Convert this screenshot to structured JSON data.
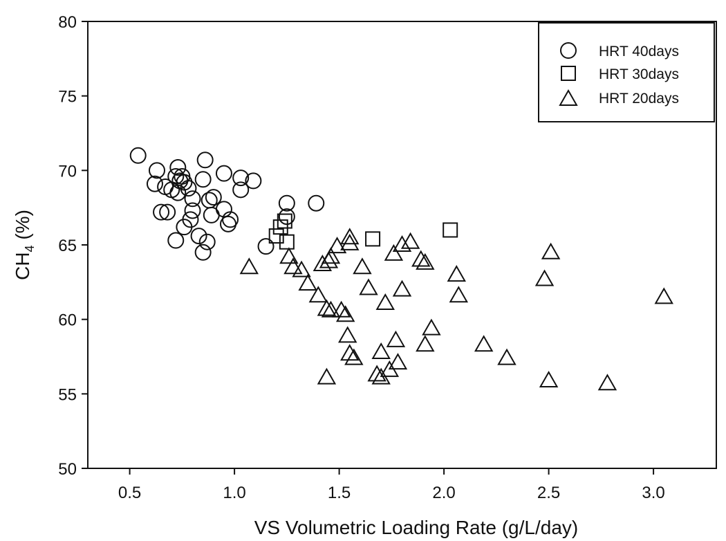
{
  "chart_data": {
    "type": "scatter",
    "xlabel": "VS Volumetric Loading Rate (g/L/day)",
    "ylabel_main": "CH",
    "ylabel_sub": "4",
    "ylabel_tail": " (%)",
    "xlim": [
      0.3,
      3.3
    ],
    "ylim": [
      50,
      80
    ],
    "xticks": [
      0.5,
      1.0,
      1.5,
      2.0,
      2.5,
      3.0
    ],
    "xtick_labels": [
      "0.5",
      "1.0",
      "1.5",
      "2.0",
      "2.5",
      "3.0"
    ],
    "yticks": [
      50,
      55,
      60,
      65,
      70,
      75,
      80
    ],
    "ytick_labels": [
      "50",
      "55",
      "60",
      "65",
      "70",
      "75",
      "80"
    ],
    "grid": false,
    "legend_position": "top-right",
    "series": [
      {
        "name": "HRT 40days",
        "marker": "circle",
        "points": [
          [
            0.54,
            71.0
          ],
          [
            0.63,
            70.0
          ],
          [
            0.62,
            69.1
          ],
          [
            0.67,
            68.9
          ],
          [
            0.7,
            68.7
          ],
          [
            0.72,
            69.6
          ],
          [
            0.73,
            70.2
          ],
          [
            0.74,
            69.3
          ],
          [
            0.75,
            69.6
          ],
          [
            0.76,
            69.2
          ],
          [
            0.78,
            68.8
          ],
          [
            0.8,
            68.1
          ],
          [
            0.73,
            68.5
          ],
          [
            0.65,
            67.2
          ],
          [
            0.68,
            67.2
          ],
          [
            0.76,
            66.2
          ],
          [
            0.72,
            65.3
          ],
          [
            0.79,
            66.7
          ],
          [
            0.8,
            67.3
          ],
          [
            0.83,
            65.6
          ],
          [
            0.85,
            64.5
          ],
          [
            0.87,
            65.2
          ],
          [
            0.85,
            69.4
          ],
          [
            0.86,
            70.7
          ],
          [
            0.88,
            68.0
          ],
          [
            0.89,
            67.0
          ],
          [
            0.9,
            68.2
          ],
          [
            0.95,
            69.8
          ],
          [
            0.95,
            67.4
          ],
          [
            0.97,
            66.4
          ],
          [
            0.98,
            66.7
          ],
          [
            1.03,
            69.5
          ],
          [
            1.03,
            68.7
          ],
          [
            1.09,
            69.3
          ],
          [
            1.15,
            64.9
          ],
          [
            1.25,
            67.8
          ],
          [
            1.25,
            66.9
          ],
          [
            1.39,
            67.8
          ]
        ]
      },
      {
        "name": "HRT 30days",
        "marker": "square",
        "points": [
          [
            1.2,
            65.6
          ],
          [
            1.22,
            66.2
          ],
          [
            1.24,
            66.6
          ],
          [
            1.25,
            65.2
          ],
          [
            1.66,
            65.4
          ],
          [
            2.03,
            66.0
          ]
        ]
      },
      {
        "name": "HRT 20days",
        "marker": "triangle",
        "points": [
          [
            1.07,
            63.5
          ],
          [
            1.26,
            64.2
          ],
          [
            1.28,
            63.5
          ],
          [
            1.32,
            63.3
          ],
          [
            1.35,
            62.4
          ],
          [
            1.4,
            61.6
          ],
          [
            1.42,
            63.7
          ],
          [
            1.45,
            63.9
          ],
          [
            1.46,
            64.2
          ],
          [
            1.44,
            60.7
          ],
          [
            1.46,
            60.6
          ],
          [
            1.49,
            64.9
          ],
          [
            1.51,
            60.6
          ],
          [
            1.53,
            60.3
          ],
          [
            1.55,
            65.5
          ],
          [
            1.55,
            65.1
          ],
          [
            1.54,
            58.9
          ],
          [
            1.55,
            57.7
          ],
          [
            1.57,
            57.4
          ],
          [
            1.44,
            56.1
          ],
          [
            1.61,
            63.5
          ],
          [
            1.64,
            62.1
          ],
          [
            1.68,
            56.3
          ],
          [
            1.7,
            57.8
          ],
          [
            1.7,
            56.1
          ],
          [
            1.72,
            61.1
          ],
          [
            1.74,
            56.6
          ],
          [
            1.76,
            64.4
          ],
          [
            1.77,
            58.6
          ],
          [
            1.78,
            57.1
          ],
          [
            1.8,
            65.0
          ],
          [
            1.8,
            62.0
          ],
          [
            1.84,
            65.2
          ],
          [
            1.89,
            64.0
          ],
          [
            1.91,
            63.8
          ],
          [
            1.91,
            58.3
          ],
          [
            1.94,
            59.4
          ],
          [
            2.06,
            63.0
          ],
          [
            2.07,
            61.6
          ],
          [
            2.19,
            58.3
          ],
          [
            2.3,
            57.4
          ],
          [
            2.48,
            62.7
          ],
          [
            2.5,
            55.9
          ],
          [
            2.51,
            64.5
          ],
          [
            2.78,
            55.7
          ],
          [
            3.05,
            61.5
          ]
        ]
      }
    ]
  }
}
